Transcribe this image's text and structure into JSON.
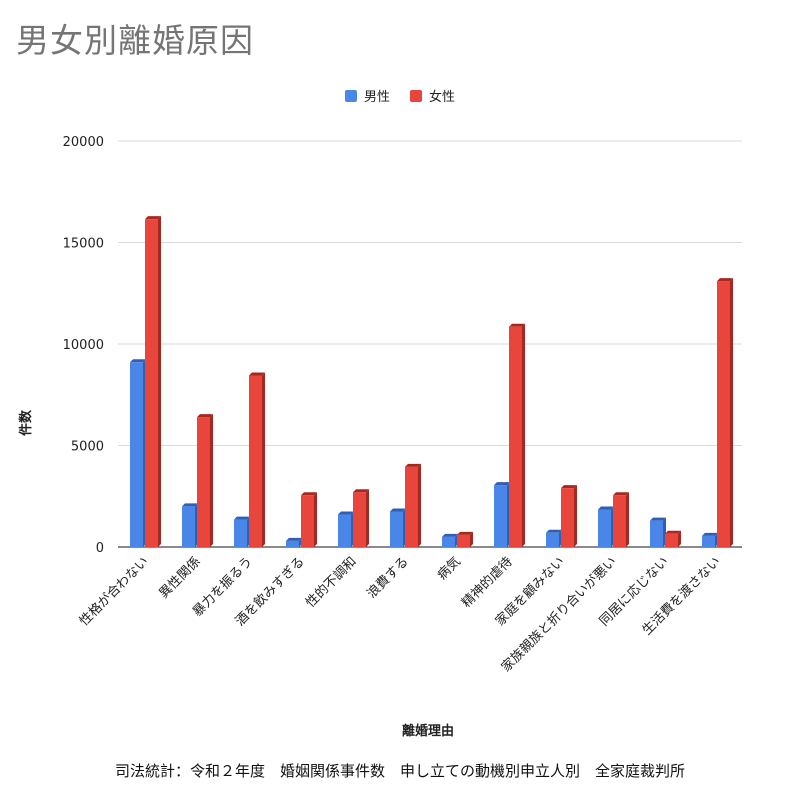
{
  "chart_data": {
    "type": "bar",
    "title": "男女別離婚原因",
    "xlabel": "離婚理由",
    "ylabel": "件数",
    "ylim": [
      0,
      20000
    ],
    "yticks": [
      0,
      5000,
      10000,
      15000,
      20000
    ],
    "grid": true,
    "legend_position": "top-center",
    "categories": [
      "性格が合わない",
      "異性関係",
      "暴力を振るう",
      "酒を飲みすぎる",
      "性的不調和",
      "浪費する",
      "病気",
      "精神的虐待",
      "家庭を顧みない",
      "家族親族と折り合いが悪い",
      "同居に応じない",
      "生活費を渡さない"
    ],
    "series": [
      {
        "name": "男性",
        "color": "#4a86e8",
        "side": "#2f5fb5",
        "values": [
          9100,
          2000,
          1350,
          300,
          1600,
          1750,
          500,
          3050,
          700,
          1850,
          1300,
          550
        ]
      },
      {
        "name": "女性",
        "color": "#e8453c",
        "side": "#a8281f",
        "values": [
          16150,
          6400,
          8450,
          2550,
          2700,
          3950,
          600,
          10850,
          2900,
          2550,
          650,
          13100
        ]
      }
    ]
  },
  "source_note": "司法統計：令和２年度　婚姻関係事件数　申し立ての動機別申立人別　全家庭裁判所"
}
